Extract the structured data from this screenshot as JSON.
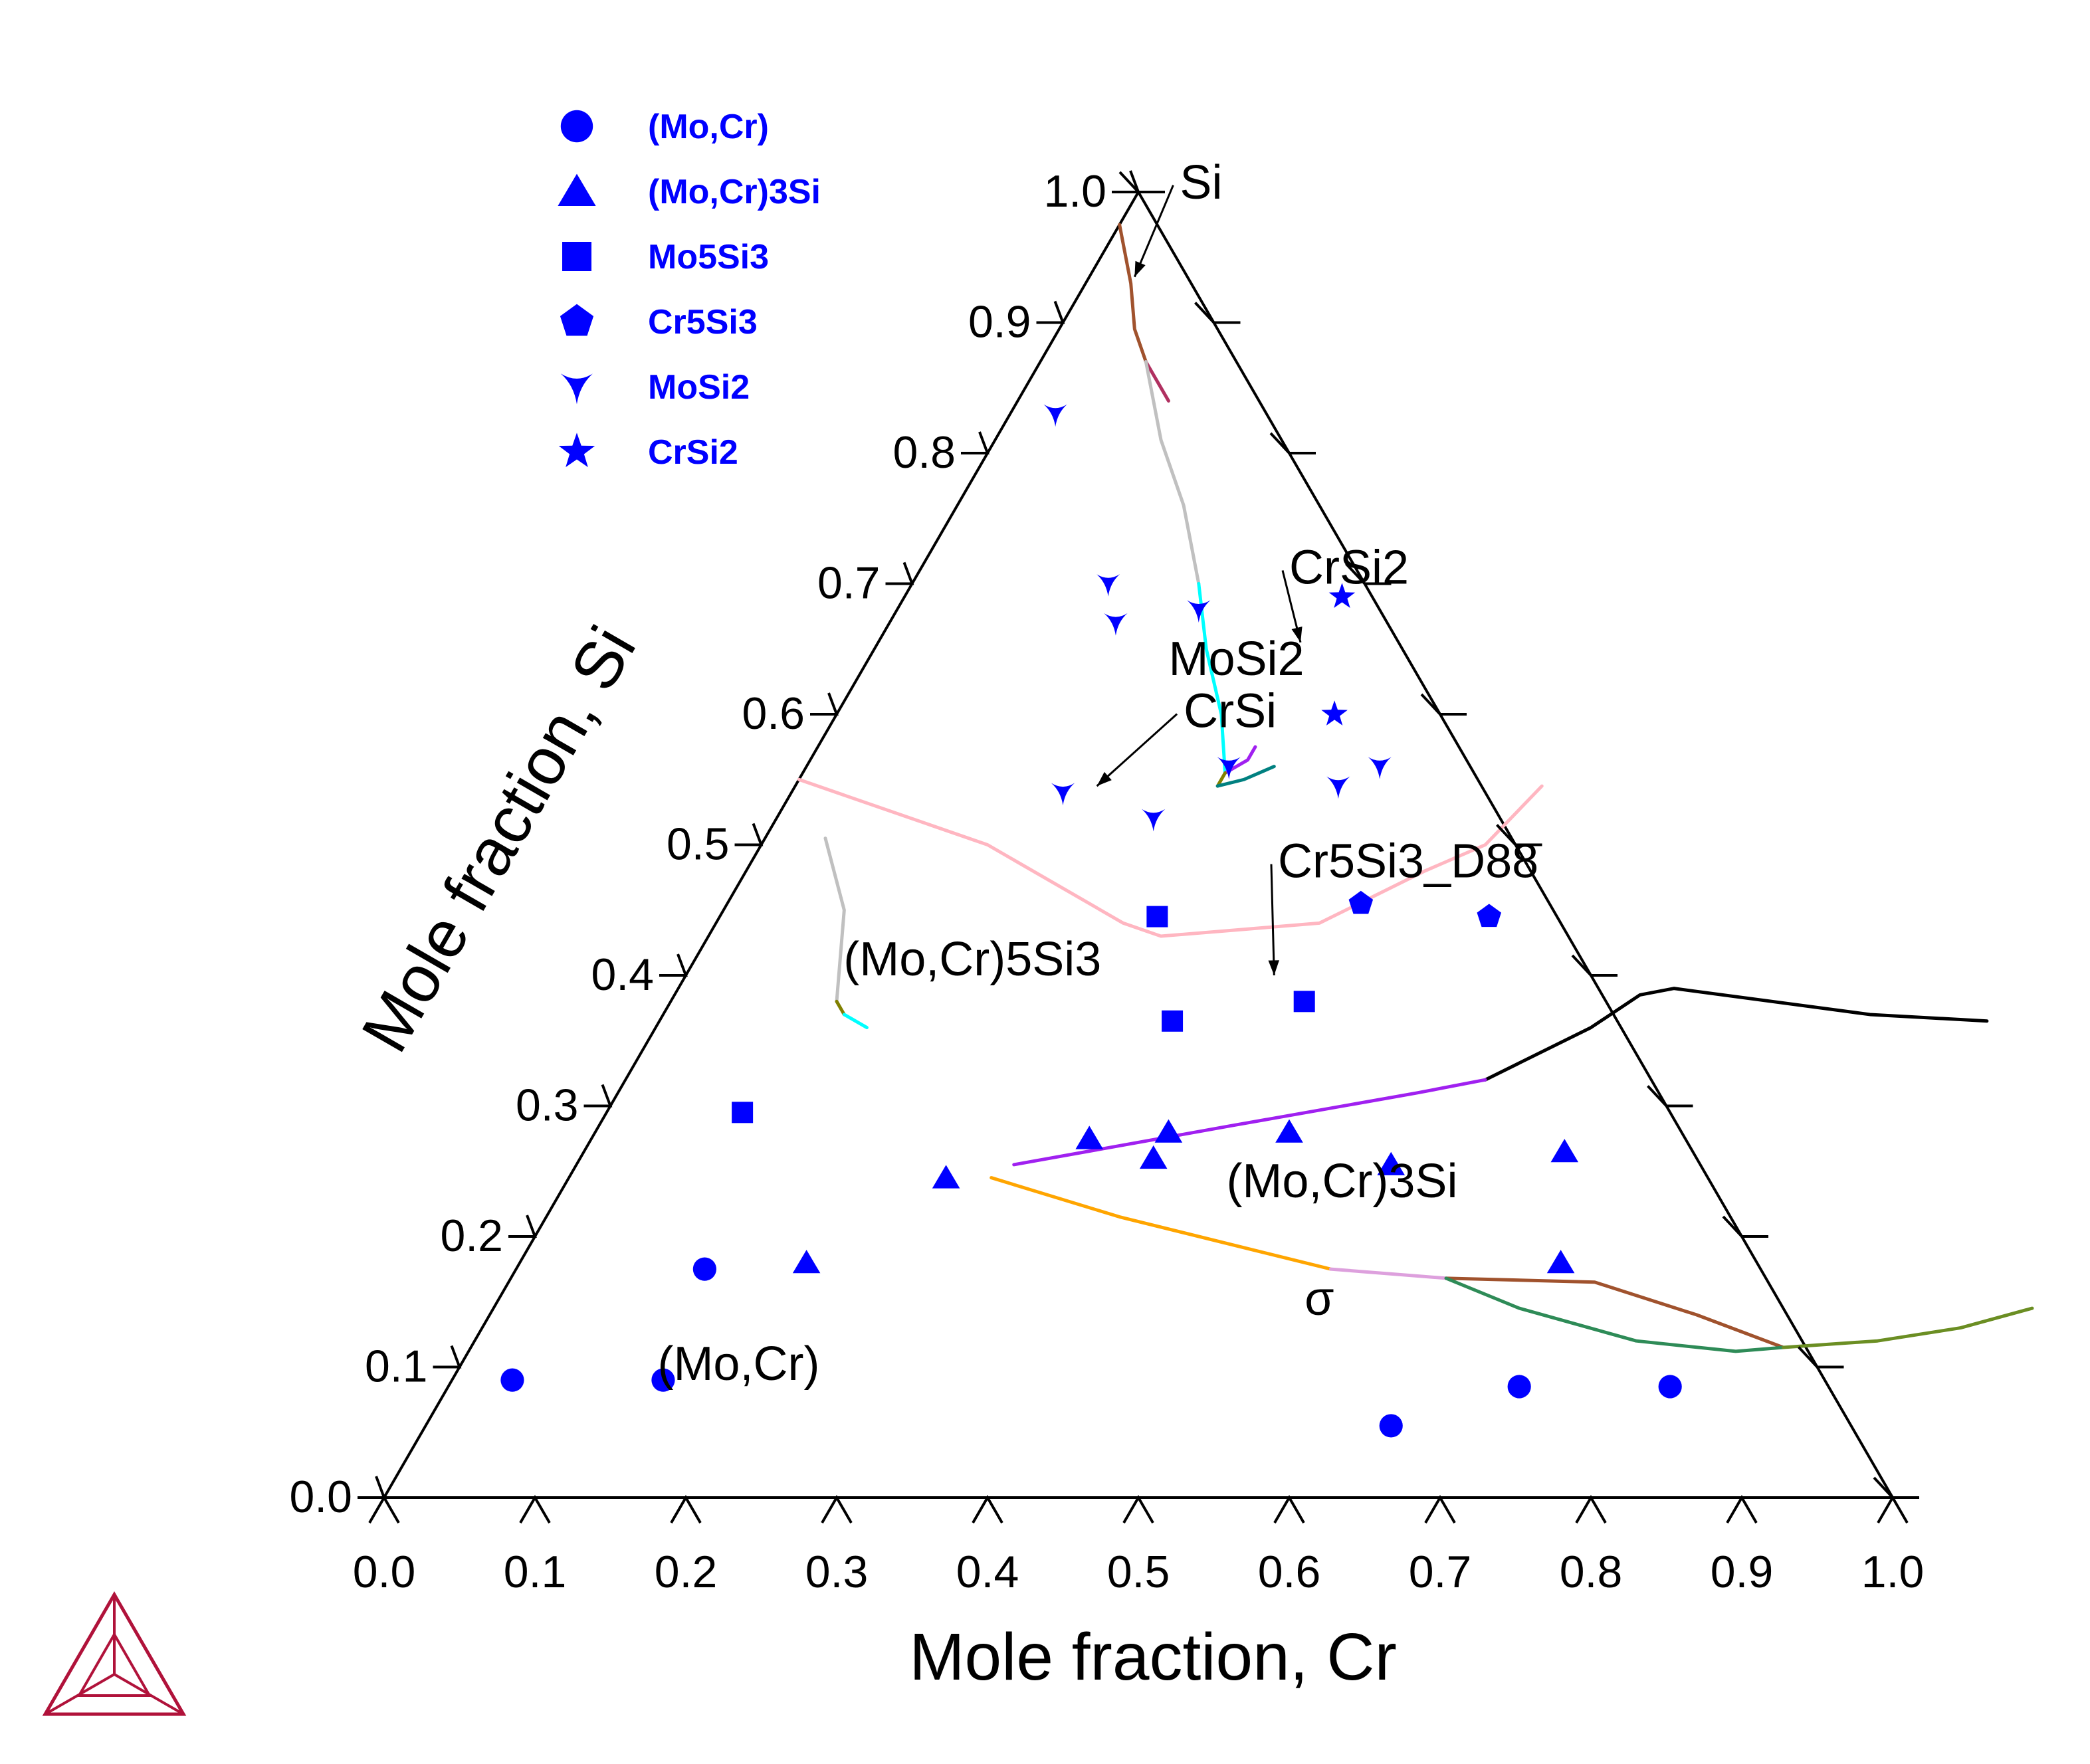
{
  "chart_data": {
    "type": "scatter",
    "subtype": "ternary-isothermal-section",
    "components": {
      "bottom": "Cr",
      "left_axis": "Si"
    },
    "xlabel": "Mole fraction, Cr",
    "ylabel": "Mole fraction, Si",
    "bottom_ticks": [
      "0.0",
      "0.1",
      "0.2",
      "0.3",
      "0.4",
      "0.5",
      "0.6",
      "0.7",
      "0.8",
      "0.9",
      "1.0"
    ],
    "left_ticks": [
      "0.0",
      "0.1",
      "0.2",
      "0.3",
      "0.4",
      "0.5",
      "0.6",
      "0.7",
      "0.8",
      "0.9",
      "1.0"
    ],
    "legend_position": "top-left",
    "legend": [
      {
        "label": "(Mo,Cr)",
        "marker": "circle"
      },
      {
        "label": "(Mo,Cr)3Si",
        "marker": "triangle"
      },
      {
        "label": "Mo5Si3",
        "marker": "square"
      },
      {
        "label": "Cr5Si3",
        "marker": "pentagon"
      },
      {
        "label": "MoSi2",
        "marker": "tri-down"
      },
      {
        "label": "CrSi2",
        "marker": "star"
      }
    ],
    "marker_color": "#0000ff",
    "region_labels": [
      {
        "text": "MoSi2",
        "cr": 0.25,
        "si": 0.63
      },
      {
        "text": "(Mo,Cr)5Si3",
        "cr": 0.19,
        "si": 0.4
      },
      {
        "text": "(Mo,Cr)3Si",
        "cr": 0.52,
        "si": 0.23
      },
      {
        "text": "σ",
        "cr": 0.55,
        "si": 0.14
      },
      {
        "text": "(Mo,Cr)",
        "cr": 0.19,
        "si": 0.09
      }
    ],
    "annotations": [
      {
        "text": "Si",
        "label_at": {
          "cr": 0.03,
          "si": 0.995
        },
        "arrow_to": {
          "cr": 0.03,
          "si": 0.935
        }
      },
      {
        "text": "CrSi2",
        "label_at": {
          "cr": 0.25,
          "si": 0.7
        },
        "arrow_to": {
          "cr": 0.28,
          "si": 0.655
        }
      },
      {
        "text": "CrSi",
        "label_at": {
          "cr": 0.235,
          "si": 0.59
        },
        "arrow_to": {
          "cr": 0.2,
          "si": 0.545
        }
      },
      {
        "text": "Cr5Si3_D88",
        "label_at": {
          "cr": 0.355,
          "si": 0.475
        },
        "arrow_to": {
          "cr": 0.39,
          "si": 0.4
        }
      }
    ],
    "series": [
      {
        "name": "(Mo,Cr)",
        "marker": "circle",
        "points": [
          {
            "cr": 0.04,
            "si": 0.09
          },
          {
            "cr": 0.14,
            "si": 0.09
          },
          {
            "cr": 0.125,
            "si": 0.175
          },
          {
            "cr": 0.64,
            "si": 0.055
          },
          {
            "cr": 0.71,
            "si": 0.085
          },
          {
            "cr": 0.81,
            "si": 0.085
          }
        ]
      },
      {
        "name": "(Mo,Cr)3Si",
        "marker": "triangle",
        "points": [
          {
            "cr": 0.19,
            "si": 0.18
          },
          {
            "cr": 0.25,
            "si": 0.245
          },
          {
            "cr": 0.33,
            "si": 0.275
          },
          {
            "cr": 0.38,
            "si": 0.28
          },
          {
            "cr": 0.38,
            "si": 0.26
          },
          {
            "cr": 0.46,
            "si": 0.28
          },
          {
            "cr": 0.54,
            "si": 0.255
          },
          {
            "cr": 0.65,
            "si": 0.265
          },
          {
            "cr": 0.69,
            "si": 0.18
          }
        ]
      },
      {
        "name": "Mo5Si3",
        "marker": "square",
        "points": [
          {
            "cr": 0.09,
            "si": 0.295
          },
          {
            "cr": 0.29,
            "si": 0.445
          },
          {
            "cr": 0.34,
            "si": 0.365
          },
          {
            "cr": 0.42,
            "si": 0.38
          }
        ]
      },
      {
        "name": "Cr5Si3",
        "marker": "pentagon",
        "points": [
          {
            "cr": 0.42,
            "si": 0.455
          },
          {
            "cr": 0.51,
            "si": 0.445
          }
        ]
      },
      {
        "name": "MoSi2",
        "marker": "tri-down",
        "points": [
          {
            "cr": 0.03,
            "si": 0.83
          },
          {
            "cr": 0.15,
            "si": 0.67
          },
          {
            "cr": 0.13,
            "si": 0.7
          },
          {
            "cr": 0.2,
            "si": 0.68
          },
          {
            "cr": 0.18,
            "si": 0.54
          },
          {
            "cr": 0.25,
            "si": 0.52
          },
          {
            "cr": 0.28,
            "si": 0.56
          },
          {
            "cr": 0.38,
            "si": 0.56
          },
          {
            "cr": 0.36,
            "si": 0.545
          }
        ]
      },
      {
        "name": "CrSi2",
        "marker": "star",
        "points": [
          {
            "cr": 0.29,
            "si": 0.69
          },
          {
            "cr": 0.33,
            "si": 0.6
          }
        ]
      }
    ],
    "phase_boundaries": [
      {
        "color": "#a0522d",
        "points": [
          [
            0.0,
            0.975
          ],
          [
            0.03,
            0.93
          ],
          [
            0.05,
            0.895
          ],
          [
            0.07,
            0.87
          ]
        ]
      },
      {
        "color": "#b03060",
        "points": [
          [
            0.07,
            0.87
          ],
          [
            0.1,
            0.84
          ]
        ]
      },
      {
        "color": "#c0c0c0",
        "points": [
          [
            0.07,
            0.87
          ],
          [
            0.11,
            0.81
          ],
          [
            0.15,
            0.76
          ],
          [
            0.19,
            0.7
          ]
        ]
      },
      {
        "color": "#00ffff",
        "points": [
          [
            0.19,
            0.7
          ],
          [
            0.22,
            0.65
          ],
          [
            0.255,
            0.6
          ],
          [
            0.28,
            0.555
          ]
        ]
      },
      {
        "color": "#a020f0",
        "points": [
          [
            0.28,
            0.555
          ],
          [
            0.29,
            0.565
          ],
          [
            0.29,
            0.575
          ]
        ]
      },
      {
        "color": "#808000",
        "points": [
          [
            0.28,
            0.555
          ],
          [
            0.28,
            0.545
          ]
        ]
      },
      {
        "color": "#008080",
        "points": [
          [
            0.28,
            0.545
          ],
          [
            0.295,
            0.55
          ],
          [
            0.31,
            0.56
          ]
        ]
      },
      {
        "color": "#ffb6c1",
        "points": [
          [
            0.0,
            0.55
          ],
          [
            0.15,
            0.5
          ],
          [
            0.27,
            0.44
          ],
          [
            0.3,
            0.43
          ],
          [
            0.4,
            0.44
          ],
          [
            0.45,
            0.48
          ],
          [
            0.48,
            0.5
          ],
          [
            0.495,
            0.545
          ]
        ]
      },
      {
        "color": "#c0c0c0",
        "points": [
          [
            0.04,
            0.505
          ],
          [
            0.08,
            0.45
          ],
          [
            0.11,
            0.38
          ]
        ]
      },
      {
        "color": "#808000",
        "points": [
          [
            0.11,
            0.38
          ],
          [
            0.12,
            0.37
          ]
        ]
      },
      {
        "color": "#00ffff",
        "points": [
          [
            0.12,
            0.37
          ],
          [
            0.14,
            0.36
          ]
        ]
      },
      {
        "color": "#000000",
        "points": [
          [
            0.57,
            0.32
          ],
          [
            0.62,
            0.36
          ],
          [
            0.64,
            0.385
          ],
          [
            0.66,
            0.39
          ],
          [
            0.8,
            0.37
          ],
          [
            0.88,
            0.365
          ]
        ]
      },
      {
        "color": "#a020f0",
        "points": [
          [
            0.29,
            0.255
          ],
          [
            0.42,
            0.285
          ],
          [
            0.53,
            0.31
          ],
          [
            0.57,
            0.32
          ]
        ]
      },
      {
        "color": "#ffa500",
        "points": [
          [
            0.28,
            0.245
          ],
          [
            0.38,
            0.215
          ],
          [
            0.48,
            0.19
          ],
          [
            0.54,
            0.175
          ]
        ]
      },
      {
        "color": "#dda0dd",
        "points": [
          [
            0.54,
            0.175
          ],
          [
            0.62,
            0.168
          ]
        ]
      },
      {
        "color": "#a0522d",
        "points": [
          [
            0.62,
            0.168
          ],
          [
            0.72,
            0.165
          ],
          [
            0.8,
            0.14
          ],
          [
            0.87,
            0.115
          ]
        ]
      },
      {
        "color": "#2e8b57",
        "points": [
          [
            0.62,
            0.168
          ],
          [
            0.68,
            0.145
          ],
          [
            0.77,
            0.12
          ],
          [
            0.84,
            0.112
          ],
          [
            0.87,
            0.115
          ]
        ]
      },
      {
        "color": "#6b8e23",
        "points": [
          [
            0.87,
            0.115
          ],
          [
            0.93,
            0.12
          ],
          [
            0.98,
            0.13
          ],
          [
            1.02,
            0.145
          ]
        ]
      }
    ]
  }
}
